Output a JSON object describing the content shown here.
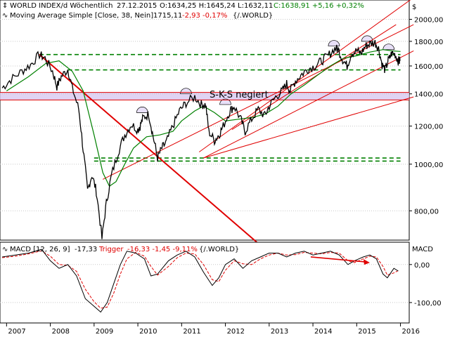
{
  "chart_data": [
    {
      "type": "candlestick",
      "header": {
        "symbol": "WORLD INDEX/d Wöchentlich",
        "date": "27.12.2015",
        "ohlc": "O:1634,25 H:1645,24 L:1632,11",
        "close_change": "C:1638,91 +5,16 +0,32%"
      },
      "indicator_legend": {
        "label": "Moving Average Simple [Close, 38, Nein]",
        "value": "1715,11",
        "change": "-2,93 -0,17%",
        "ref": "{/.WORLD}"
      },
      "currency_symbol": "$",
      "annotation": "S-K-S negiert",
      "y_ticks": [
        {
          "value": 2000,
          "label": "2000,00"
        },
        {
          "value": 1800,
          "label": "1800,00"
        },
        {
          "value": 1600,
          "label": "1600,00"
        },
        {
          "value": 1400,
          "label": "1400,00"
        },
        {
          "value": 1200,
          "label": "1200,00"
        },
        {
          "value": 1000,
          "label": "1000,00"
        },
        {
          "value": 800,
          "label": "800,00"
        }
      ],
      "y_scale": "log",
      "ylim": [
        700,
        2150
      ],
      "x_ticks": [
        "2007",
        "2008",
        "2009",
        "2010",
        "2011",
        "2012",
        "2013",
        "2014",
        "2015",
        "2016"
      ],
      "price_path": [
        [
          2006.9,
          1440
        ],
        [
          2007.1,
          1500
        ],
        [
          2007.35,
          1560
        ],
        [
          2007.55,
          1610
        ],
        [
          2007.75,
          1690
        ],
        [
          2007.88,
          1660
        ],
        [
          2008.05,
          1560
        ],
        [
          2008.15,
          1450
        ],
        [
          2008.25,
          1520
        ],
        [
          2008.4,
          1575
        ],
        [
          2008.5,
          1440
        ],
        [
          2008.65,
          1300
        ],
        [
          2008.75,
          1070
        ],
        [
          2008.85,
          880
        ],
        [
          2008.95,
          950
        ],
        [
          2009.05,
          880
        ],
        [
          2009.18,
          700
        ],
        [
          2009.28,
          830
        ],
        [
          2009.4,
          950
        ],
        [
          2009.55,
          1060
        ],
        [
          2009.7,
          1150
        ],
        [
          2009.85,
          1210
        ],
        [
          2010.0,
          1180
        ],
        [
          2010.05,
          1200
        ],
        [
          2010.12,
          1250
        ],
        [
          2010.25,
          1270
        ],
        [
          2010.35,
          1140
        ],
        [
          2010.45,
          1030
        ],
        [
          2010.55,
          1080
        ],
        [
          2010.65,
          1110
        ],
        [
          2010.8,
          1200
        ],
        [
          2010.95,
          1290
        ],
        [
          2011.1,
          1340
        ],
        [
          2011.3,
          1380
        ],
        [
          2011.45,
          1330
        ],
        [
          2011.55,
          1330
        ],
        [
          2011.62,
          1170
        ],
        [
          2011.75,
          1120
        ],
        [
          2011.85,
          1150
        ],
        [
          2011.95,
          1200
        ],
        [
          2012.1,
          1290
        ],
        [
          2012.2,
          1320
        ],
        [
          2012.35,
          1240
        ],
        [
          2012.45,
          1170
        ],
        [
          2012.6,
          1240
        ],
        [
          2012.75,
          1300
        ],
        [
          2012.9,
          1260
        ],
        [
          2013.0,
          1320
        ],
        [
          2013.15,
          1380
        ],
        [
          2013.3,
          1420
        ],
        [
          2013.4,
          1470
        ],
        [
          2013.48,
          1420
        ],
        [
          2013.6,
          1490
        ],
        [
          2013.75,
          1540
        ],
        [
          2013.9,
          1580
        ],
        [
          2014.05,
          1600
        ],
        [
          2014.2,
          1640
        ],
        [
          2014.35,
          1680
        ],
        [
          2014.5,
          1740
        ],
        [
          2014.58,
          1730
        ],
        [
          2014.68,
          1650
        ],
        [
          2014.78,
          1600
        ],
        [
          2014.88,
          1700
        ],
        [
          2015.0,
          1720
        ],
        [
          2015.1,
          1700
        ],
        [
          2015.2,
          1760
        ],
        [
          2015.3,
          1780
        ],
        [
          2015.42,
          1790
        ],
        [
          2015.5,
          1740
        ],
        [
          2015.58,
          1610
        ],
        [
          2015.65,
          1570
        ],
        [
          2015.72,
          1640
        ],
        [
          2015.8,
          1700
        ],
        [
          2015.88,
          1690
        ],
        [
          2015.95,
          1640
        ],
        [
          2015.99,
          1638.91
        ]
      ],
      "moving_average": [
        [
          2007.0,
          1420
        ],
        [
          2007.5,
          1520
        ],
        [
          2007.9,
          1620
        ],
        [
          2008.2,
          1640
        ],
        [
          2008.5,
          1560
        ],
        [
          2008.75,
          1420
        ],
        [
          2009.0,
          1150
        ],
        [
          2009.2,
          960
        ],
        [
          2009.35,
          900
        ],
        [
          2009.5,
          920
        ],
        [
          2009.7,
          1000
        ],
        [
          2009.9,
          1080
        ],
        [
          2010.2,
          1140
        ],
        [
          2010.5,
          1150
        ],
        [
          2010.8,
          1170
        ],
        [
          2011.0,
          1230
        ],
        [
          2011.3,
          1290
        ],
        [
          2011.5,
          1320
        ],
        [
          2011.75,
          1280
        ],
        [
          2012.0,
          1230
        ],
        [
          2012.3,
          1240
        ],
        [
          2012.6,
          1250
        ],
        [
          2012.9,
          1270
        ],
        [
          2013.2,
          1320
        ],
        [
          2013.5,
          1400
        ],
        [
          2013.8,
          1460
        ],
        [
          2014.1,
          1530
        ],
        [
          2014.4,
          1600
        ],
        [
          2014.7,
          1660
        ],
        [
          2015.0,
          1680
        ],
        [
          2015.3,
          1710
        ],
        [
          2015.6,
          1730
        ],
        [
          2015.8,
          1720
        ],
        [
          2016.0,
          1715
        ]
      ],
      "drawn_lines": {
        "downtrend": [
          [
            2007.75,
            1690
          ],
          [
            2012.95,
            660
          ]
        ],
        "lower_horizontal": [
          [
            2009.0,
            1030
          ],
          [
            2016.0,
            1030
          ]
        ],
        "lower_horizontal_2": [
          [
            2009.0,
            1015
          ],
          [
            2016.0,
            1015
          ]
        ],
        "upper_horizontal": [
          [
            2007.75,
            1690
          ],
          [
            2016.0,
            1690
          ]
        ],
        "mid_horizontal": [
          [
            2008.4,
            1570
          ],
          [
            2016.0,
            1570
          ]
        ],
        "channel_top": [
          [
            2009.2,
            930
          ],
          [
            2016.3,
            1950
          ]
        ],
        "channel_mid": [
          [
            2011.5,
            1030
          ],
          [
            2016.3,
            1720
          ]
        ],
        "channel_bottom": [
          [
            2011.5,
            1030
          ],
          [
            2016.3,
            1380
          ]
        ],
        "upper_fan": [
          [
            2011.4,
            1060
          ],
          [
            2016.3,
            2220
          ]
        ],
        "steep_up": [
          [
            2012.15,
            1180
          ],
          [
            2015.9,
            1950
          ]
        ],
        "neckline_top": 1410,
        "neckline_bottom": 1360
      },
      "arcs": [
        {
          "x": 2010.1,
          "y": 1280
        },
        {
          "x": 2011.1,
          "y": 1400
        },
        {
          "x": 2012.0,
          "y": 1330
        },
        {
          "x": 2014.48,
          "y": 1760
        },
        {
          "x": 2015.24,
          "y": 1800
        },
        {
          "x": 2015.73,
          "y": 1730
        }
      ]
    },
    {
      "type": "line",
      "legend": {
        "label": "MACD [12, 26, 9]",
        "value": "-17,33",
        "trigger_label": "Trigger",
        "trigger_value": "-16,33 -1,45 -9,11%",
        "ref": "{/.WORLD}"
      },
      "panel_title": "MACD",
      "y_ticks": [
        {
          "value": 0,
          "label": "0,00"
        },
        {
          "value": -100,
          "label": "-100,00"
        }
      ],
      "ylim": [
        -150,
        55
      ],
      "macd": [
        [
          2006.9,
          20
        ],
        [
          2007.2,
          25
        ],
        [
          2007.5,
          30
        ],
        [
          2007.8,
          40
        ],
        [
          2008.0,
          10
        ],
        [
          2008.2,
          -10
        ],
        [
          2008.4,
          0
        ],
        [
          2008.6,
          -30
        ],
        [
          2008.8,
          -90
        ],
        [
          2009.0,
          -110
        ],
        [
          2009.15,
          -125
        ],
        [
          2009.3,
          -100
        ],
        [
          2009.45,
          -50
        ],
        [
          2009.6,
          0
        ],
        [
          2009.75,
          35
        ],
        [
          2009.95,
          30
        ],
        [
          2010.15,
          15
        ],
        [
          2010.3,
          -30
        ],
        [
          2010.45,
          -25
        ],
        [
          2010.7,
          10
        ],
        [
          2010.9,
          25
        ],
        [
          2011.1,
          35
        ],
        [
          2011.3,
          20
        ],
        [
          2011.5,
          -20
        ],
        [
          2011.7,
          -55
        ],
        [
          2011.85,
          -35
        ],
        [
          2012.0,
          0
        ],
        [
          2012.2,
          15
        ],
        [
          2012.4,
          -10
        ],
        [
          2012.6,
          10
        ],
        [
          2012.8,
          20
        ],
        [
          2013.0,
          30
        ],
        [
          2013.2,
          30
        ],
        [
          2013.4,
          20
        ],
        [
          2013.6,
          30
        ],
        [
          2013.8,
          35
        ],
        [
          2014.0,
          25
        ],
        [
          2014.2,
          30
        ],
        [
          2014.4,
          35
        ],
        [
          2014.6,
          25
        ],
        [
          2014.8,
          0
        ],
        [
          2014.95,
          10
        ],
        [
          2015.15,
          20
        ],
        [
          2015.3,
          25
        ],
        [
          2015.45,
          15
        ],
        [
          2015.6,
          -25
        ],
        [
          2015.7,
          -35
        ],
        [
          2015.85,
          -10
        ],
        [
          2015.95,
          -17
        ]
      ],
      "trigger": [
        [
          2006.9,
          18
        ],
        [
          2007.2,
          22
        ],
        [
          2007.5,
          28
        ],
        [
          2007.8,
          36
        ],
        [
          2008.0,
          22
        ],
        [
          2008.2,
          0
        ],
        [
          2008.4,
          -2
        ],
        [
          2008.6,
          -18
        ],
        [
          2008.8,
          -65
        ],
        [
          2009.0,
          -98
        ],
        [
          2009.15,
          -115
        ],
        [
          2009.3,
          -112
        ],
        [
          2009.45,
          -75
        ],
        [
          2009.6,
          -25
        ],
        [
          2009.75,
          15
        ],
        [
          2009.95,
          32
        ],
        [
          2010.15,
          22
        ],
        [
          2010.3,
          -5
        ],
        [
          2010.45,
          -28
        ],
        [
          2010.7,
          -5
        ],
        [
          2010.9,
          18
        ],
        [
          2011.1,
          30
        ],
        [
          2011.3,
          28
        ],
        [
          2011.5,
          0
        ],
        [
          2011.7,
          -40
        ],
        [
          2011.85,
          -45
        ],
        [
          2012.0,
          -15
        ],
        [
          2012.2,
          10
        ],
        [
          2012.4,
          2
        ],
        [
          2012.6,
          0
        ],
        [
          2012.8,
          15
        ],
        [
          2013.0,
          25
        ],
        [
          2013.2,
          30
        ],
        [
          2013.4,
          25
        ],
        [
          2013.6,
          26
        ],
        [
          2013.8,
          32
        ],
        [
          2014.0,
          30
        ],
        [
          2014.2,
          28
        ],
        [
          2014.4,
          32
        ],
        [
          2014.6,
          30
        ],
        [
          2014.8,
          10
        ],
        [
          2014.95,
          5
        ],
        [
          2015.15,
          15
        ],
        [
          2015.3,
          22
        ],
        [
          2015.45,
          20
        ],
        [
          2015.6,
          -5
        ],
        [
          2015.7,
          -28
        ],
        [
          2015.85,
          -22
        ],
        [
          2015.95,
          -16
        ]
      ],
      "arrow": [
        [
          2013.95,
          20
        ],
        [
          2015.3,
          5
        ]
      ]
    }
  ],
  "colors": {
    "price": "#000000",
    "moving_average": "#008000",
    "trendline": "#e00000",
    "support": "#008000",
    "neckline_band": "#d8c8f0",
    "arc_fill": "#e8e0f8",
    "macd": "#000000",
    "trigger": "#e00000",
    "up_change": "#008000",
    "down_change": "#e00000"
  }
}
